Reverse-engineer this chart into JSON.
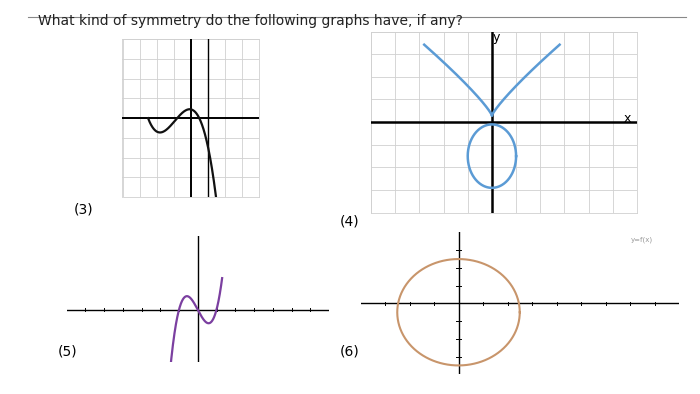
{
  "title": "What kind of symmetry do the following graphs have, if any?",
  "title_fontsize": 10,
  "background_color": "#ffffff",
  "graph3_label": "(3)",
  "graph4_label": "(4)",
  "graph5_label": "(5)",
  "graph6_label": "(6)",
  "grid_color": "#d0d0d0",
  "axis_color": "#000000",
  "curve3_color": "#111111",
  "curve4_color": "#5b9bd5",
  "curve5_color": "#7b3fa0",
  "curve6_color": "#c8956b"
}
